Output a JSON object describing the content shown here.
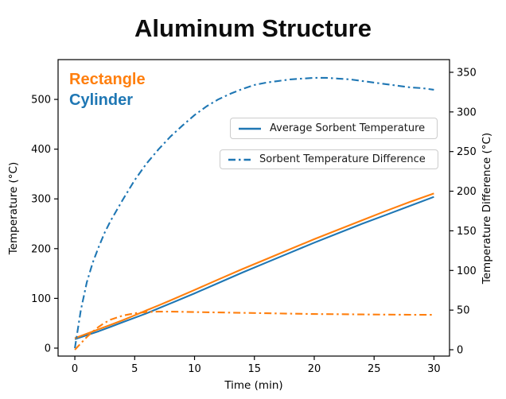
{
  "title": "Aluminum Structure",
  "annotations": {
    "rectangle": "Rectangle",
    "cylinder": "Cylinder"
  },
  "legend": {
    "entries": [
      {
        "label": "Average Sorbent Temperature",
        "style": "solid"
      },
      {
        "label": "Sorbent Temperature Difference",
        "style": "dashdot"
      }
    ]
  },
  "colors": {
    "blue": "#1f77b4",
    "orange": "#ff7f0e",
    "axis": "#000000",
    "legend_border": "#cccccc"
  },
  "chart_data": {
    "type": "line",
    "title": "Aluminum Structure",
    "xlabel": "Time (min)",
    "ylabel_left": "Temperature (°C)",
    "ylabel_right": "Temperature Difference (°C)",
    "xticks": [
      0,
      5,
      10,
      15,
      20,
      25,
      30
    ],
    "yticks_left": [
      0,
      100,
      200,
      300,
      400,
      500
    ],
    "yticks_right": [
      0,
      50,
      100,
      150,
      200,
      250,
      300,
      350
    ],
    "xlim": [
      -1.4,
      31.3
    ],
    "ylim_left": [
      -16,
      580
    ],
    "ylim_right": [
      -8,
      366
    ],
    "grid": false,
    "legend_position": "upper right, two stacked boxes",
    "series": [
      {
        "name": "Cylinder - Average Sorbent Temperature",
        "axis": "left",
        "style": "solid",
        "color": "#1f77b4",
        "x": [
          0,
          1,
          2,
          3,
          4,
          5,
          6,
          7,
          8,
          10,
          12,
          14,
          16,
          18,
          20,
          22,
          24,
          26,
          28,
          30
        ],
        "y": [
          18,
          26,
          34,
          43,
          52,
          61,
          70,
          80,
          90,
          110,
          131,
          152,
          172,
          192,
          212,
          231,
          250,
          268,
          286,
          304
        ]
      },
      {
        "name": "Rectangle - Average Sorbent Temperature",
        "axis": "left",
        "style": "solid",
        "color": "#ff7f0e",
        "x": [
          0,
          1,
          2,
          3,
          4,
          5,
          6,
          7,
          8,
          10,
          12,
          14,
          16,
          18,
          20,
          22,
          24,
          26,
          28,
          30
        ],
        "y": [
          20,
          29,
          38,
          47,
          56,
          66,
          76,
          86,
          96,
          117,
          138,
          159,
          179,
          199,
          219,
          238,
          257,
          276,
          294,
          311
        ]
      },
      {
        "name": "Cylinder - Sorbent Temperature Difference",
        "axis": "right",
        "style": "dashdot",
        "color": "#1f77b4",
        "x": [
          0,
          0.5,
          1,
          1.5,
          2,
          2.5,
          3,
          3.5,
          4,
          5,
          6,
          7,
          8,
          9,
          10,
          11,
          12,
          13,
          14,
          15,
          16,
          17,
          18,
          19,
          20,
          21,
          22,
          23,
          24,
          25,
          26,
          27,
          28,
          29,
          30
        ],
        "y": [
          2,
          50,
          85,
          110,
          130,
          148,
          163,
          176,
          189,
          214,
          235,
          253,
          269,
          283,
          296,
          307,
          316,
          323,
          329,
          334,
          337,
          339,
          341,
          342,
          343,
          343,
          342,
          341,
          339,
          337,
          335,
          333,
          331,
          330,
          328
        ]
      },
      {
        "name": "Rectangle - Sorbent Temperature Difference",
        "axis": "right",
        "style": "dashdot",
        "color": "#ff7f0e",
        "x": [
          0,
          0.5,
          1,
          1.5,
          2,
          2.5,
          3,
          4,
          5,
          6,
          7,
          8,
          9,
          10,
          12,
          14,
          16,
          18,
          20,
          22,
          24,
          26,
          28,
          30
        ],
        "y": [
          0,
          8,
          16,
          23,
          29,
          34,
          38,
          43,
          46,
          47.5,
          48,
          48,
          47.8,
          47.5,
          47,
          46.5,
          46,
          45.5,
          45,
          44.8,
          44.5,
          44.3,
          44.1,
          44
        ]
      }
    ]
  }
}
